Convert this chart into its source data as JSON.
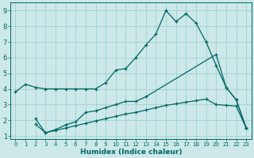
{
  "bg_color": "#cce8e8",
  "grid_color": "#99cccc",
  "line_color": "#006666",
  "xlabel": "Humidex (Indice chaleur)",
  "xlim": [
    -0.5,
    23.5
  ],
  "ylim": [
    0.8,
    9.5
  ],
  "xticks": [
    0,
    1,
    2,
    3,
    4,
    5,
    6,
    7,
    8,
    9,
    10,
    11,
    12,
    13,
    14,
    15,
    16,
    17,
    18,
    19,
    20,
    21,
    22,
    23
  ],
  "yticks": [
    1,
    2,
    3,
    4,
    5,
    6,
    7,
    8,
    9
  ],
  "line1_x": [
    0,
    1,
    2,
    3,
    4,
    5,
    6,
    7,
    8,
    9,
    10,
    11,
    12,
    13,
    14,
    15,
    16,
    17,
    18,
    19,
    20,
    21,
    22,
    23
  ],
  "line1_y": [
    3.8,
    4.3,
    4.1,
    4.0,
    4.0,
    4.0,
    4.0,
    4.0,
    4.0,
    4.4,
    5.2,
    5.3,
    6.0,
    6.8,
    7.5,
    9.0,
    8.3,
    8.8,
    8.2,
    7.0,
    5.5,
    4.1,
    3.3,
    1.5
  ],
  "line2_x": [
    2,
    3,
    4,
    5,
    6,
    7,
    8,
    9,
    10,
    11,
    12,
    13,
    20,
    21,
    22,
    23
  ],
  "line2_y": [
    2.1,
    1.2,
    1.4,
    1.7,
    1.9,
    2.5,
    2.6,
    2.8,
    3.0,
    3.2,
    3.2,
    3.5,
    6.2,
    4.1,
    3.3,
    1.5
  ],
  "line3_x": [
    2,
    3,
    4,
    5,
    6,
    7,
    8,
    9,
    10,
    11,
    12,
    13,
    14,
    15,
    16,
    17,
    18,
    19,
    20,
    21,
    22,
    23
  ],
  "line3_y": [
    1.75,
    1.2,
    1.35,
    1.5,
    1.65,
    1.8,
    1.95,
    2.1,
    2.25,
    2.4,
    2.5,
    2.65,
    2.8,
    2.95,
    3.05,
    3.15,
    3.25,
    3.35,
    3.0,
    2.95,
    2.9,
    1.5
  ]
}
